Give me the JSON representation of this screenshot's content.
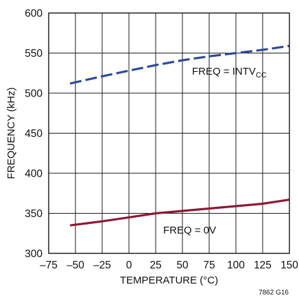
{
  "chart_data": {
    "type": "line",
    "title": "",
    "xlabel": "TEMPERATURE (°C)",
    "ylabel": "FREQUENCY (kHz)",
    "xlim": [
      -75,
      150
    ],
    "ylim": [
      300,
      600
    ],
    "x_ticks": [
      -75,
      -50,
      -25,
      0,
      25,
      50,
      75,
      100,
      125,
      150
    ],
    "x_tick_labels": [
      "–75",
      "–50",
      "–25",
      "0",
      "25",
      "50",
      "75",
      "100",
      "125",
      "150"
    ],
    "y_ticks": [
      300,
      350,
      400,
      450,
      500,
      550,
      600
    ],
    "y_tick_labels": [
      "300",
      "350",
      "400",
      "450",
      "500",
      "550",
      "600"
    ],
    "grid": true,
    "series": [
      {
        "label_main": "FREQ = INTV",
        "label_sub": "CC",
        "color": "#2e4a9a",
        "style": "dashed",
        "x": [
          -55,
          -25,
          0,
          25,
          50,
          75,
          100,
          125,
          150
        ],
        "y": [
          512,
          521,
          528,
          535,
          541,
          546,
          550,
          554,
          559
        ]
      },
      {
        "label_main": "FREQ = 0V",
        "color": "#8c1a34",
        "style": "solid",
        "x": [
          -55,
          -25,
          0,
          25,
          50,
          75,
          100,
          125,
          150
        ],
        "y": [
          335,
          340,
          345,
          350,
          353,
          356,
          359,
          362,
          367
        ]
      }
    ]
  },
  "figure_code": "7862 G16"
}
